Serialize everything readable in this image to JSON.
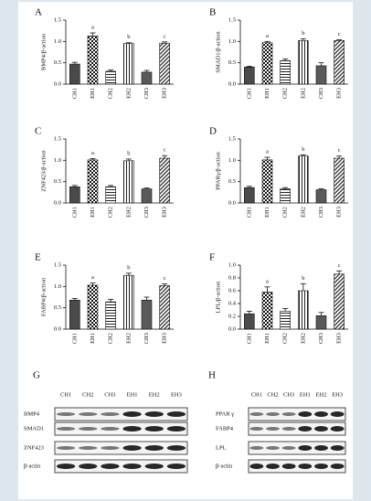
{
  "chart_data": [
    {
      "type": "bar",
      "panel": "A",
      "ylabel": "BMP4/β-action",
      "categories": [
        "CH1",
        "EH1",
        "CH2",
        "EH2",
        "CH3",
        "EH3"
      ],
      "values": [
        0.47,
        1.13,
        0.3,
        0.95,
        0.28,
        0.96
      ],
      "errors": [
        0.04,
        0.07,
        0.03,
        0.02,
        0.04,
        0.03
      ],
      "annotations": [
        null,
        "a",
        null,
        "b",
        null,
        "c"
      ],
      "ylim": [
        0,
        1.5
      ],
      "yticks": [
        {
          "value": 0,
          "label": "0.0"
        },
        {
          "value": 0.5,
          "label": "0.5"
        },
        {
          "value": 1,
          "label": "1.0"
        },
        {
          "value": 1.5,
          "label": "1.5"
        }
      ]
    },
    {
      "type": "bar",
      "panel": "B",
      "ylabel": "SMAD1/β-action",
      "categories": [
        "CH1",
        "EH1",
        "CH2",
        "EH2",
        "CH3",
        "EH3"
      ],
      "values": [
        0.4,
        0.97,
        0.55,
        1.02,
        0.43,
        1.02
      ],
      "errors": [
        0.02,
        0.03,
        0.04,
        0.04,
        0.07,
        0.02
      ],
      "annotations": [
        null,
        "a",
        null,
        "b",
        null,
        "c"
      ],
      "ylim": [
        0,
        1.5
      ],
      "yticks": [
        {
          "value": 0,
          "label": "0.0"
        },
        {
          "value": 0.5,
          "label": "0.5"
        },
        {
          "value": 1,
          "label": "1.0"
        },
        {
          "value": 1.5,
          "label": "1.5"
        }
      ]
    },
    {
      "type": "bar",
      "panel": "C",
      "ylabel": "ZNF423/β-action",
      "categories": [
        "CH1",
        "EH1",
        "CH2",
        "EH2",
        "CH3",
        "EH3"
      ],
      "values": [
        0.38,
        1.01,
        0.38,
        0.99,
        0.33,
        1.05
      ],
      "errors": [
        0.03,
        0.03,
        0.03,
        0.04,
        0.02,
        0.06
      ],
      "annotations": [
        null,
        "a",
        null,
        "b",
        null,
        "c"
      ],
      "ylim": [
        0,
        1.5
      ],
      "yticks": [
        {
          "value": 0,
          "label": "0.0"
        },
        {
          "value": 0.5,
          "label": "0.5"
        },
        {
          "value": 1,
          "label": "1.0"
        },
        {
          "value": 1.5,
          "label": "1.5"
        }
      ]
    },
    {
      "type": "bar",
      "panel": "D",
      "ylabel": "PPARγ/β-action",
      "categories": [
        "CH1",
        "EH1",
        "CH2",
        "EH2",
        "CH3",
        "EH3"
      ],
      "values": [
        0.36,
        1.01,
        0.33,
        1.1,
        0.31,
        1.05
      ],
      "errors": [
        0.03,
        0.06,
        0.03,
        0.03,
        0.02,
        0.05
      ],
      "annotations": [
        null,
        "a",
        null,
        "b",
        null,
        "c"
      ],
      "ylim": [
        0,
        1.5
      ],
      "yticks": [
        {
          "value": 0,
          "label": "0.0"
        },
        {
          "value": 0.5,
          "label": "0.5"
        },
        {
          "value": 1,
          "label": "1.0"
        },
        {
          "value": 1.5,
          "label": "1.5"
        }
      ]
    },
    {
      "type": "bar",
      "panel": "E",
      "ylabel": "FABP4/β-action",
      "categories": [
        "CH1",
        "EH1",
        "CH2",
        "EH2",
        "CH3",
        "EH3"
      ],
      "values": [
        0.68,
        1.03,
        0.64,
        1.26,
        0.68,
        1.02
      ],
      "errors": [
        0.04,
        0.05,
        0.06,
        0.05,
        0.07,
        0.04
      ],
      "annotations": [
        null,
        "a",
        null,
        "b",
        null,
        "c"
      ],
      "ylim": [
        0,
        1.5
      ],
      "yticks": [
        {
          "value": 0,
          "label": "0.0"
        },
        {
          "value": 0.5,
          "label": "0.5"
        },
        {
          "value": 1,
          "label": "1.0"
        },
        {
          "value": 1.5,
          "label": "1.5"
        }
      ]
    },
    {
      "type": "bar",
      "panel": "F",
      "ylabel": "LPL/β-action",
      "categories": [
        "CH1",
        "EH1",
        "CH2",
        "EH2",
        "CH3",
        "EH3"
      ],
      "values": [
        0.24,
        0.58,
        0.28,
        0.6,
        0.21,
        0.86
      ],
      "errors": [
        0.04,
        0.08,
        0.04,
        0.11,
        0.05,
        0.05
      ],
      "annotations": [
        null,
        "a",
        null,
        "b",
        null,
        "c"
      ],
      "ylim": [
        0,
        1
      ],
      "yticks": [
        {
          "value": 0,
          "label": "0.0"
        },
        {
          "value": 0.2,
          "label": "0.2"
        },
        {
          "value": 0.4,
          "label": "0.4"
        },
        {
          "value": 0.6,
          "label": "0.6"
        },
        {
          "value": 0.8,
          "label": "0.8"
        },
        {
          "value": 1,
          "label": "1.0"
        }
      ]
    }
  ],
  "blots": [
    {
      "panel": "G",
      "lanes": [
        "CH1",
        "CH2",
        "CH3",
        "EH1",
        "EH2",
        "EH3"
      ],
      "proteins": [
        "BMP4",
        "SMAD1",
        "ZNF423",
        "β-actin"
      ]
    },
    {
      "panel": "H",
      "lanes": [
        "CH1",
        "CH2",
        "CH3",
        "EH1",
        "EH2",
        "EH3"
      ],
      "proteins": [
        "PPAR γ",
        "FABP4",
        "LPL",
        "β-actin"
      ]
    }
  ]
}
